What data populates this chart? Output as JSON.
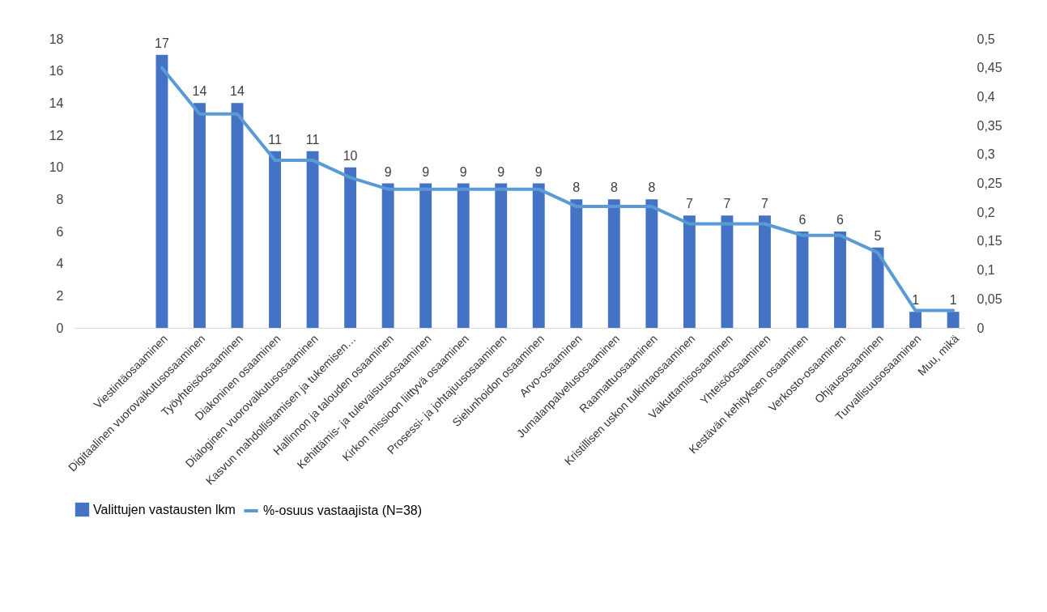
{
  "chart_data": {
    "type": "bar",
    "categories": [
      null,
      null,
      "Viestintäosaaminen",
      "Digitaalinen vuorovaikutusosaaminen",
      "Työyhteisöosaaminen",
      "Diakoninen osaaminen",
      "Dialoginen vuorovaikutusosaaminen",
      "Kasvun mahdollistamisen ja tukemisen…",
      "Hallinnon ja talouden osaaminen",
      "Kehittämis- ja tulevaisuusosaaminen",
      "Kirkon missioon liittyvä osaaminen",
      "Prosessi- ja johtajuusosaaminen",
      "Sielunhoidon osaaminen",
      "Arvo-osaaminen",
      "Jumalanpalvelusosaaminen",
      "Raamattuosaaminen",
      "Kristillisen uskon tulkintaosaaminen",
      "Vaikuttamisosaaminen",
      "Yhteisöosaaminen",
      "Kestävän kehityksen osaaminen",
      "Verkosto-osaaminen",
      "Ohjausosaaminen",
      "Turvallisuusosaaminen",
      "Muu, mikä"
    ],
    "series": [
      {
        "name": "Valittujen vastausten lkm",
        "color": "#4472c4",
        "values": [
          null,
          null,
          17,
          14,
          14,
          11,
          11,
          10,
          9,
          9,
          9,
          9,
          9,
          8,
          8,
          8,
          7,
          7,
          7,
          6,
          6,
          5,
          1,
          1
        ],
        "value_labels": [
          null,
          null,
          "17",
          "14",
          "14",
          "11",
          "11",
          "10",
          "9",
          "9",
          "9",
          "9",
          "9",
          "8",
          "8",
          "8",
          "7",
          "7",
          "7",
          "6",
          "6",
          "5",
          "1",
          "1"
        ]
      },
      {
        "name": "%-osuus vastaajista (N=38)",
        "type": "line",
        "axis": "y2",
        "color": "#5b9bd5",
        "values": [
          null,
          null,
          0.45,
          0.37,
          0.37,
          0.29,
          0.29,
          0.26,
          0.24,
          0.24,
          0.24,
          0.24,
          0.24,
          0.21,
          0.21,
          0.21,
          0.18,
          0.18,
          0.18,
          0.16,
          0.16,
          0.13,
          0.03,
          0.03
        ]
      }
    ],
    "ylim": [
      0,
      18
    ],
    "yticks": [
      0,
      2,
      4,
      6,
      8,
      10,
      12,
      14,
      16,
      18
    ],
    "y2lim": [
      0,
      0.5
    ],
    "y2ticks": [
      0,
      {
        "value": 0.05,
        "label": "0,05"
      },
      {
        "value": 0.1,
        "label": "0,1"
      },
      {
        "value": 0.15,
        "label": "0,15"
      },
      {
        "value": 0.2,
        "label": "0,2"
      },
      {
        "value": 0.25,
        "label": "0,25"
      },
      {
        "value": 0.3,
        "label": "0,3"
      },
      {
        "value": 0.35,
        "label": "0,35"
      },
      {
        "value": 0.4,
        "label": "0,4"
      },
      {
        "value": 0.45,
        "label": "0,45"
      },
      {
        "value": 0.5,
        "label": "0,5"
      }
    ],
    "legend": "bottom",
    "grid": false,
    "line_style": "solid",
    "marker": "none"
  }
}
